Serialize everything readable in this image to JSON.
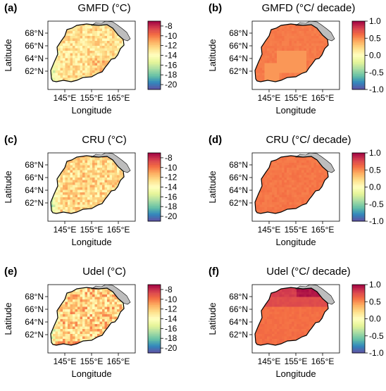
{
  "panels": [
    {
      "letter": "(a)",
      "title": "GMFD (°C)",
      "kind": "clim",
      "variant": 0
    },
    {
      "letter": "(b)",
      "title": "GMFD (°C/ decade)",
      "kind": "trend",
      "variant": 0
    },
    {
      "letter": "(c)",
      "title": "CRU (°C)",
      "kind": "clim",
      "variant": 1
    },
    {
      "letter": "(d)",
      "title": "CRU (°C/ decade)",
      "kind": "trend",
      "variant": 1
    },
    {
      "letter": "(e)",
      "title": "Udel (°C)",
      "kind": "clim",
      "variant": 2
    },
    {
      "letter": "(f)",
      "title": "Udel (°C/ decade)",
      "kind": "trend",
      "variant": 2
    }
  ],
  "axes": {
    "xlabel": "Longitude",
    "ylabel": "Latitude",
    "lon_ticks": [
      "145°E",
      "155°E",
      "165°E"
    ],
    "lat_ticks": [
      "68°N",
      "66°N",
      "64°N",
      "62°N"
    ]
  },
  "colorbars": {
    "clim": {
      "ticks": [
        "-8",
        "-10",
        "-12",
        "-14",
        "-16",
        "-18",
        "-20"
      ],
      "range": [
        -21,
        -7
      ]
    },
    "trend": {
      "ticks": [
        "1.0",
        "0.5",
        "0.0",
        "-0.5",
        "-1.0"
      ],
      "range": [
        -1.0,
        1.0
      ]
    }
  },
  "palette": [
    "#5e4fa2",
    "#3288bd",
    "#66c2a5",
    "#abdda4",
    "#e6f598",
    "#ffffbf",
    "#fee08b",
    "#fdae61",
    "#f46d43",
    "#d53e4f",
    "#9e0142"
  ]
}
